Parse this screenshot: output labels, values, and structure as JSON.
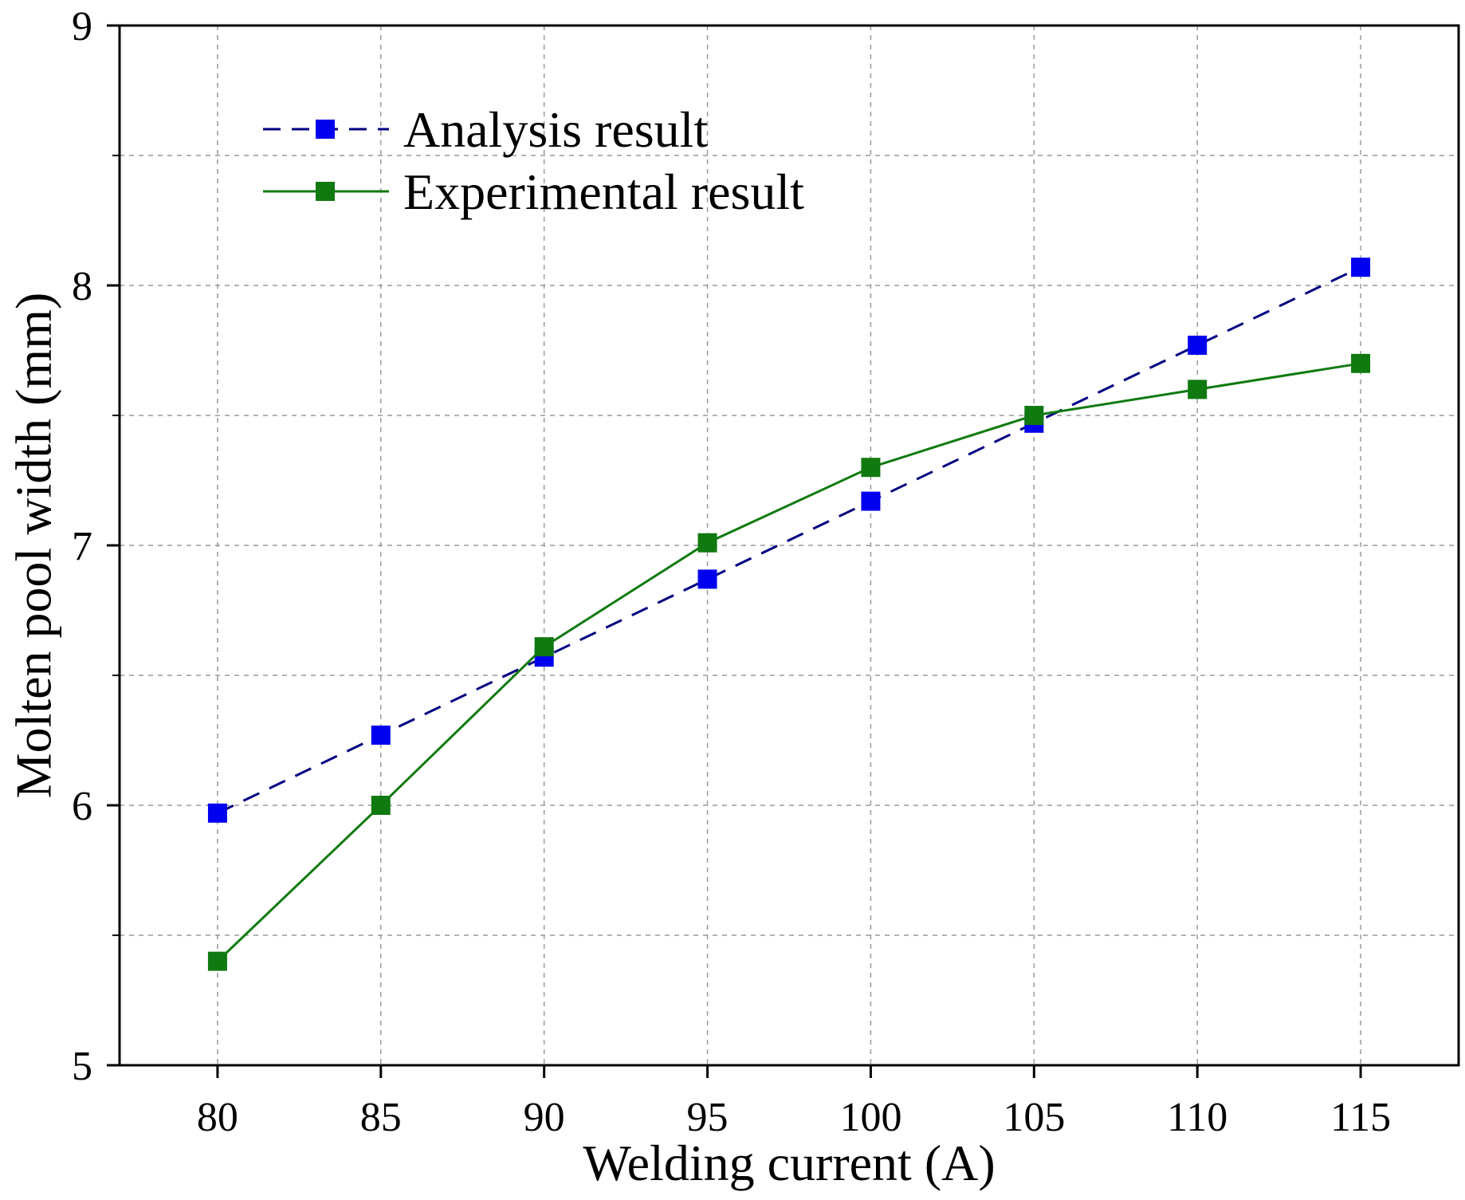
{
  "chart_data": {
    "type": "line",
    "title": "",
    "xlabel": "Welding current (A)",
    "ylabel": "Molten pool width (mm)",
    "xlim": [
      77,
      118
    ],
    "ylim": [
      5,
      9
    ],
    "x": [
      80,
      85,
      90,
      95,
      100,
      105,
      110,
      115
    ],
    "xticks": [
      80,
      85,
      90,
      95,
      100,
      105,
      110,
      115
    ],
    "yticks": [
      5,
      6,
      7,
      8,
      9
    ],
    "ygrid": [
      5.5,
      6,
      6.5,
      7,
      7.5,
      8,
      8.5
    ],
    "grid": true,
    "legend_position": "top-left",
    "series": [
      {
        "name": "Analysis result",
        "color": "#0000ee",
        "line_color": "#000080",
        "line_style": "dashed",
        "marker": "square",
        "values": [
          5.97,
          6.27,
          6.57,
          6.87,
          7.17,
          7.47,
          7.77,
          8.07
        ]
      },
      {
        "name": "Experimental result",
        "color": "#107a10",
        "line_color": "#107a10",
        "line_style": "solid",
        "marker": "square",
        "values": [
          5.4,
          6.0,
          6.61,
          7.01,
          7.3,
          7.5,
          7.6,
          7.7
        ]
      }
    ]
  }
}
